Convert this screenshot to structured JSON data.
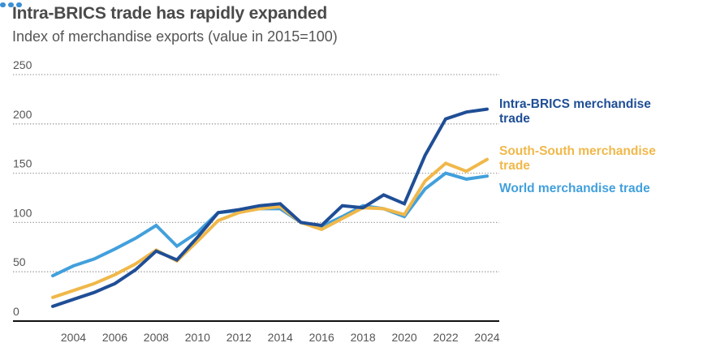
{
  "header": {
    "title": "Intra-BRICS trade has rapidly expanded",
    "subtitle": "Index of merchandise exports (value in 2015=100)"
  },
  "chart_data": {
    "type": "line",
    "title": "Intra-BRICS trade has rapidly expanded",
    "subtitle": "Index of merchandise exports (value in 2015=100)",
    "xlabel": "",
    "ylabel": "",
    "x": [
      2003,
      2004,
      2005,
      2006,
      2007,
      2008,
      2009,
      2010,
      2011,
      2012,
      2013,
      2014,
      2015,
      2016,
      2017,
      2018,
      2019,
      2020,
      2021,
      2022,
      2023,
      2024
    ],
    "xticks": [
      "2004",
      "2006",
      "2008",
      "2010",
      "2012",
      "2014",
      "2016",
      "2018",
      "2020",
      "2022",
      "2024"
    ],
    "yticks": [
      "0",
      "50",
      "100",
      "150",
      "200",
      "250"
    ],
    "ylim": [
      0,
      250
    ],
    "grid": "horizontal-dotted",
    "legend_placement": "right (direct labels at line ends)",
    "series": [
      {
        "name": "Intra-BRICS merchandise trade",
        "label_lines": [
          "Intra-BRICS merchandise",
          "trade"
        ],
        "color": "#1f4e96",
        "values": [
          15,
          22,
          29,
          38,
          52,
          71,
          62,
          85,
          110,
          113,
          117,
          119,
          100,
          97,
          117,
          115,
          128,
          119,
          168,
          205,
          212,
          215
        ]
      },
      {
        "name": "South-South merchandise trade",
        "label_lines": [
          "South-South merchandise",
          "trade"
        ],
        "color": "#f0b84a",
        "values": [
          24,
          31,
          38,
          47,
          58,
          72,
          61,
          81,
          102,
          110,
          114,
          116,
          100,
          93,
          104,
          115,
          114,
          108,
          142,
          160,
          152,
          164
        ]
      },
      {
        "name": "World merchandise trade",
        "label_lines": [
          "World merchandise trade"
        ],
        "color": "#42a0dc",
        "values": [
          46,
          56,
          63,
          73,
          84,
          97,
          76,
          90,
          110,
          112,
          114,
          114,
          100,
          96,
          106,
          117,
          114,
          106,
          134,
          150,
          144,
          147
        ]
      }
    ]
  }
}
